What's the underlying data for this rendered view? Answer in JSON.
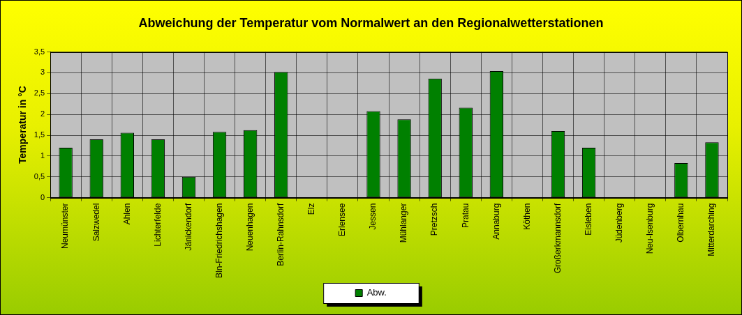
{
  "chart_data": {
    "type": "bar",
    "title": "Abweichung der Temperatur vom Normalwert an den Regionalwetterstationen",
    "y_label": "Temperatur in °C",
    "categories": [
      "Neumünster",
      "Salzwedel",
      "Ahlen",
      "Lichterfelde",
      "Jänickendorf",
      "Bln-Friedrichshagen",
      "Neuenhagen",
      "Berlin-Rahnsdorf",
      "Elz",
      "Erlensee",
      "Jessen",
      "Mühlanger",
      "Pretzsch",
      "Pratau",
      "Annaburg",
      "Köthen",
      "Großerkmannsdorf",
      "Eisleben",
      "Jüdenberg",
      "Neu-Isenburg",
      "Olbernhau",
      "Mitterdarching"
    ],
    "series": [
      {
        "name": "Abw.",
        "color": "#008000",
        "values": [
          1.2,
          1.4,
          1.56,
          1.4,
          0.5,
          1.58,
          1.62,
          3.02,
          null,
          null,
          2.08,
          1.88,
          2.86,
          2.16,
          3.04,
          null,
          1.6,
          1.2,
          null,
          null,
          0.83,
          1.33
        ]
      }
    ],
    "ylim": [
      0,
      3.5
    ],
    "yticks": [
      0,
      {
        "value": 0.5,
        "label": "0,5"
      },
      1,
      {
        "value": 1.5,
        "label": "1,5"
      },
      2,
      {
        "value": 2.5,
        "label": "2,5"
      },
      3,
      {
        "value": 3.5,
        "label": "3,5"
      }
    ],
    "grid": true,
    "legend": "bottom"
  }
}
